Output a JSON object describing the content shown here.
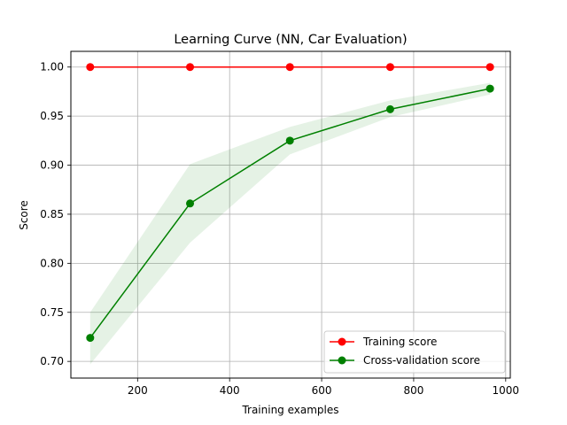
{
  "chart_data": {
    "type": "line",
    "title": "Learning Curve (NN, Car Evaluation)",
    "xlabel": "Training examples",
    "ylabel": "Score",
    "xlim": [
      55,
      1010
    ],
    "ylim": [
      0.683,
      1.016
    ],
    "xticks": [
      200,
      400,
      600,
      800,
      1000
    ],
    "yticks": [
      0.7,
      0.75,
      0.8,
      0.85,
      0.9,
      0.95,
      1.0
    ],
    "ytick_labels": [
      "0.70",
      "0.75",
      "0.80",
      "0.85",
      "0.90",
      "0.95",
      "1.00"
    ],
    "grid": true,
    "legend_placement": "lower-right",
    "x": [
      97,
      314,
      531,
      749,
      966
    ],
    "series": [
      {
        "name": "Training score",
        "color": "#ff0000",
        "values": [
          1.0,
          1.0,
          1.0,
          1.0,
          1.0
        ],
        "band_lower": [
          1.0,
          1.0,
          1.0,
          1.0,
          1.0
        ],
        "band_upper": [
          1.0,
          1.0,
          1.0,
          1.0,
          1.0
        ]
      },
      {
        "name": "Cross-validation score",
        "color": "#008000",
        "values": [
          0.724,
          0.861,
          0.925,
          0.957,
          0.978
        ],
        "band_lower": [
          0.697,
          0.821,
          0.911,
          0.949,
          0.972
        ],
        "band_upper": [
          0.75,
          0.901,
          0.939,
          0.966,
          0.984
        ]
      }
    ]
  }
}
